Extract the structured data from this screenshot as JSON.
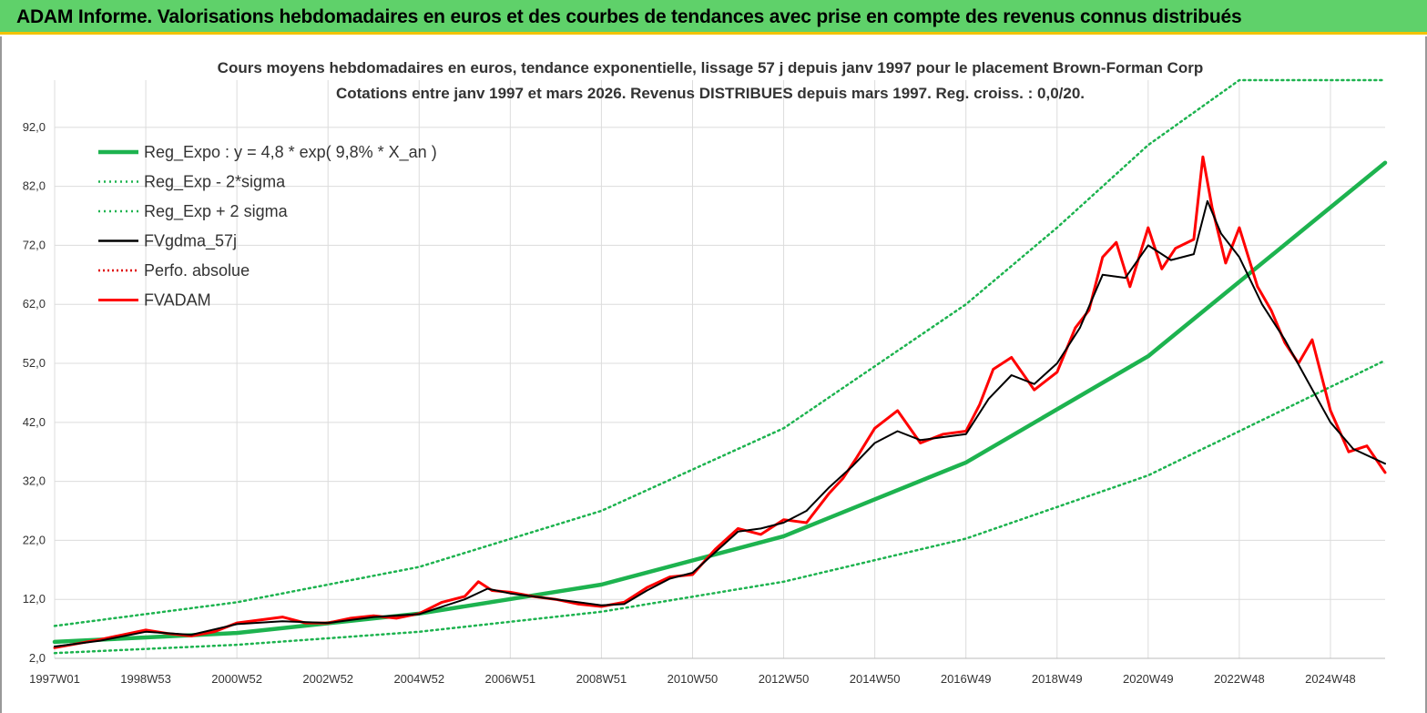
{
  "header": {
    "title": "ADAM Informe. Valorisations hebdomadaires en euros et des courbes de tendances avec prise en compte des revenus connus distribués"
  },
  "colors": {
    "banner": "#5fd16a",
    "banner_border": "#f2c200",
    "regression": "#1db34f",
    "sigma": "#1db34f",
    "gdma": "#000000",
    "perfo": "#e00000",
    "fvadam": "#ff0000",
    "grid": "#dcdcdc"
  },
  "chart_data": {
    "type": "line",
    "title": "Cours moyens hebdomadaires en euros, tendance exponentielle, lissage 57 j depuis janv 1997 pour le placement Brown-Forman Corp",
    "subtitle": "Cotations entre janv 1997 et mars 2026. Revenus DISTRIBUES depuis mars 1997. Reg. croiss. : 0,0/20.",
    "x_tick_labels": [
      "1997W01",
      "1998W53",
      "2000W52",
      "2002W52",
      "2004W52",
      "2006W51",
      "2008W51",
      "2010W50",
      "2012W50",
      "2014W50",
      "2016W49",
      "2018W49",
      "2020W49",
      "2022W48",
      "2024W48"
    ],
    "x_tick_years": [
      1997.0,
      1999.0,
      2001.0,
      2003.0,
      2005.0,
      2007.0,
      2009.0,
      2011.0,
      2013.0,
      2015.0,
      2017.0,
      2019.0,
      2021.0,
      2023.0,
      2025.0
    ],
    "x_range": [
      1997.0,
      2026.2
    ],
    "y_ticks": [
      "2,0",
      "12,0",
      "22,0",
      "32,0",
      "42,0",
      "52,0",
      "62,0",
      "72,0",
      "82,0",
      "92,0"
    ],
    "y_tick_values": [
      2,
      12,
      22,
      32,
      42,
      52,
      62,
      72,
      82,
      92
    ],
    "ylim": [
      2,
      100
    ],
    "grid": true,
    "legend_position": "top-left",
    "series": [
      {
        "name": "Reg_Expo : y = 4,8 * exp( 9,8% *  X_an )",
        "style": "solid-thick",
        "x": [
          1997.0,
          2001.0,
          2005.0,
          2009.0,
          2013.0,
          2017.0,
          2021.0,
          2026.2
        ],
        "values": [
          4.8,
          6.3,
          9.6,
          14.5,
          22.7,
          35.2,
          53.2,
          86.0
        ]
      },
      {
        "name": "Reg_Exp - 2*sigma",
        "style": "dotted",
        "x": [
          1997.0,
          2001.0,
          2005.0,
          2009.0,
          2013.0,
          2017.0,
          2021.0,
          2026.2
        ],
        "values": [
          2.9,
          4.3,
          6.5,
          9.9,
          15.0,
          22.3,
          33.0,
          52.5
        ]
      },
      {
        "name": "Reg_Exp + 2 sigma",
        "style": "dotted",
        "x": [
          1997.0,
          2001.0,
          2005.0,
          2009.0,
          2013.0,
          2017.0,
          2019.0,
          2021.0,
          2023.0,
          2024.5,
          2026.2
        ],
        "values": [
          7.5,
          11.5,
          17.5,
          27.0,
          41.0,
          62.0,
          75.0,
          89.0,
          102.0,
          102.0,
          102.0
        ]
      },
      {
        "name": "FVgdma_57j",
        "style": "solid",
        "x": [
          1997.0,
          1998.0,
          1999.0,
          2000.0,
          2001.0,
          2002.0,
          2003.0,
          2004.0,
          2005.0,
          2006.0,
          2006.5,
          2007.0,
          2007.5,
          2008.0,
          2008.5,
          2009.0,
          2009.5,
          2010.0,
          2010.5,
          2011.0,
          2011.5,
          2012.0,
          2012.5,
          2013.0,
          2013.5,
          2014.0,
          2014.5,
          2015.0,
          2015.5,
          2016.0,
          2016.5,
          2017.0,
          2017.5,
          2018.0,
          2018.5,
          2019.0,
          2019.5,
          2020.0,
          2020.5,
          2021.0,
          2021.5,
          2022.0,
          2022.3,
          2022.6,
          2023.0,
          2023.5,
          2024.0,
          2024.5,
          2025.0,
          2025.5,
          2026.2
        ],
        "values": [
          4.0,
          5.0,
          6.5,
          6.0,
          7.8,
          8.3,
          8.0,
          9.0,
          9.5,
          12.0,
          13.8,
          13.0,
          12.5,
          12.0,
          11.5,
          11.0,
          11.2,
          13.5,
          15.5,
          16.5,
          20.0,
          23.5,
          24.0,
          25.0,
          27.0,
          31.0,
          34.5,
          38.5,
          40.5,
          39.0,
          39.5,
          40.0,
          46.0,
          50.0,
          48.5,
          52.0,
          58.0,
          67.0,
          66.5,
          72.0,
          69.5,
          70.5,
          79.5,
          74.0,
          70.0,
          62.0,
          56.0,
          49.0,
          42.0,
          37.5,
          35.0
        ]
      },
      {
        "name": "Perfo. absolue",
        "style": "dotted-red",
        "x": [
          1997.0,
          1998.0,
          1999.0,
          2000.0,
          2001.0,
          2002.0,
          2003.0,
          2004.0,
          2005.0,
          2006.0,
          2006.5,
          2007.0,
          2007.5,
          2008.0,
          2008.5,
          2009.0,
          2009.5,
          2010.0,
          2010.5,
          2011.0,
          2011.5,
          2012.0,
          2012.5,
          2013.0,
          2013.5,
          2014.0,
          2014.5,
          2015.0,
          2015.5,
          2016.0,
          2016.5,
          2017.0,
          2017.5,
          2018.0,
          2018.5,
          2019.0,
          2019.5,
          2020.0,
          2020.5,
          2021.0,
          2021.5,
          2022.0,
          2022.3,
          2022.6,
          2023.0,
          2023.5,
          2024.0,
          2024.5,
          2025.0,
          2025.5,
          2026.2
        ],
        "values": [
          4.0,
          5.0,
          6.5,
          6.0,
          7.8,
          8.3,
          8.0,
          9.0,
          9.5,
          12.0,
          13.8,
          13.0,
          12.5,
          12.0,
          11.5,
          11.0,
          11.2,
          13.5,
          15.5,
          16.5,
          20.0,
          23.5,
          24.0,
          25.0,
          27.0,
          31.0,
          34.5,
          38.5,
          40.5,
          39.0,
          39.5,
          40.0,
          46.0,
          50.0,
          48.5,
          52.0,
          58.0,
          67.0,
          66.5,
          72.0,
          69.5,
          70.5,
          79.5,
          74.0,
          70.0,
          62.0,
          56.0,
          49.0,
          42.0,
          37.5,
          35.0
        ]
      },
      {
        "name": "FVADAM",
        "style": "solid-red",
        "x": [
          1997.0,
          1997.5,
          1998.0,
          1998.5,
          1999.0,
          1999.5,
          2000.0,
          2000.5,
          2001.0,
          2001.5,
          2002.0,
          2002.5,
          2003.0,
          2003.5,
          2004.0,
          2004.5,
          2005.0,
          2005.5,
          2006.0,
          2006.3,
          2006.6,
          2007.0,
          2007.5,
          2008.0,
          2008.5,
          2009.0,
          2009.5,
          2010.0,
          2010.5,
          2011.0,
          2011.5,
          2012.0,
          2012.5,
          2013.0,
          2013.5,
          2014.0,
          2014.3,
          2014.6,
          2015.0,
          2015.5,
          2016.0,
          2016.5,
          2017.0,
          2017.3,
          2017.6,
          2018.0,
          2018.5,
          2019.0,
          2019.4,
          2019.7,
          2020.0,
          2020.3,
          2020.6,
          2021.0,
          2021.3,
          2021.6,
          2022.0,
          2022.2,
          2022.4,
          2022.7,
          2023.0,
          2023.4,
          2023.7,
          2024.0,
          2024.3,
          2024.6,
          2025.0,
          2025.4,
          2025.8,
          2026.2
        ],
        "values": [
          3.8,
          4.5,
          5.2,
          6.0,
          6.8,
          6.2,
          5.8,
          6.5,
          8.0,
          8.5,
          9.0,
          8.0,
          8.0,
          8.8,
          9.2,
          8.8,
          9.6,
          11.5,
          12.5,
          15.0,
          13.5,
          13.2,
          12.5,
          12.0,
          11.2,
          10.8,
          11.5,
          14.0,
          15.8,
          16.2,
          20.5,
          24.0,
          23.0,
          25.5,
          25.0,
          30.0,
          32.5,
          36.0,
          41.0,
          44.0,
          38.5,
          40.0,
          40.5,
          45.0,
          51.0,
          53.0,
          47.5,
          50.5,
          58.0,
          61.0,
          70.0,
          72.5,
          65.0,
          75.0,
          68.0,
          71.5,
          73.0,
          87.0,
          78.5,
          69.0,
          75.0,
          65.0,
          61.0,
          55.5,
          52.0,
          56.0,
          44.0,
          37.0,
          38.0,
          33.5
        ]
      }
    ]
  }
}
